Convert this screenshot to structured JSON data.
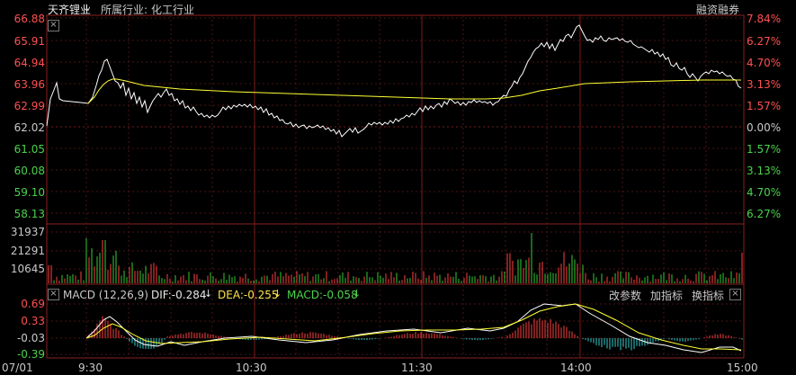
{
  "header": {
    "stock_name": "天齐锂业",
    "industry_label": "所属行业:",
    "industry_value": "化工行业",
    "margin_label": "融资融券",
    "marker_icon": "down-arrow-marker-icon"
  },
  "price_axis": {
    "prices": [
      "66.88",
      "65.91",
      "64.94",
      "63.96",
      "62.99",
      "62.02",
      "61.05",
      "60.08",
      "59.10",
      "58.13"
    ],
    "percents": [
      "7.84%",
      "6.27%",
      "4.70%",
      "3.13%",
      "1.57%",
      "0.00%",
      "1.57%",
      "3.13%",
      "4.70%",
      "6.27%"
    ],
    "up_color": "#ff5050",
    "down_color": "#4bd34b",
    "flat_color": "#c8c8c8"
  },
  "volume_axis": {
    "labels": [
      "31937",
      "21291",
      "10645"
    ]
  },
  "macd": {
    "name": "MACD (12,26,9)",
    "dif": "DIF:-0.284",
    "dea": "DEA:-0.255",
    "macd": "MACD:-0.058",
    "axis_labels": [
      "0.69",
      "0.33",
      "-0.03",
      "-0.39"
    ],
    "buttons": [
      "改参数",
      "加指标",
      "换指标"
    ]
  },
  "time_axis": [
    "07/01",
    "9:30",
    "10:30",
    "11:30",
    "14:00",
    "15:00"
  ],
  "chart_data": {
    "type": "line",
    "series": [],
    "price_ylim": [
      57.5,
      67.0
    ],
    "volume_ylim": [
      0,
      31937
    ],
    "macd_ylim": [
      -0.45,
      0.75
    ],
    "grid": true
  }
}
